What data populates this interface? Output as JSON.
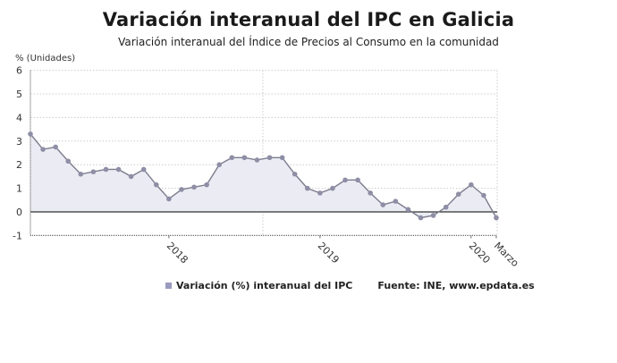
{
  "header": {
    "title": "Variación interanual del IPC en Galicia",
    "subtitle": "Variación interanual del Índice de Precios al Consumo en la comunidad"
  },
  "legend": {
    "series_label": "Variación (%) interanual del IPC",
    "source": "Fuente: INE, www.epdata.es"
  },
  "colors": {
    "line": "#7c7c8e",
    "marker": "#8e8ea6",
    "area": "#ebebf3",
    "legend_swatch": "#9a9abf",
    "zero_line": "#333333",
    "grid": "#cccccc"
  },
  "chart_data": {
    "type": "area",
    "title": "Variación interanual del IPC en Galicia",
    "subtitle": "Variación interanual del Índice de Precios al Consumo en la comunidad",
    "xlabel": "",
    "ylabel": "% (Unidades)",
    "ylim": [
      -1,
      6
    ],
    "yticks": [
      -1,
      0,
      1,
      2,
      3,
      4,
      5,
      6
    ],
    "xtick_labels": [
      "2018",
      "2019",
      "2020",
      "Marzo"
    ],
    "grid": true,
    "legend_position": "bottom",
    "x": [
      "2017-02",
      "2017-03",
      "2017-04",
      "2017-05",
      "2017-06",
      "2017-07",
      "2017-08",
      "2017-09",
      "2017-10",
      "2017-11",
      "2017-12",
      "2018-01",
      "2018-02",
      "2018-03",
      "2018-04",
      "2018-05",
      "2018-06",
      "2018-07",
      "2018-08",
      "2018-09",
      "2018-10",
      "2018-11",
      "2018-12",
      "2019-01",
      "2019-02",
      "2019-03",
      "2019-04",
      "2019-05",
      "2019-06",
      "2019-07",
      "2019-08",
      "2019-09",
      "2019-10",
      "2019-11",
      "2019-12",
      "2020-01",
      "2020-02",
      "2020-03"
    ],
    "series": [
      {
        "name": "Variación (%) interanual del IPC",
        "values": [
          3.3,
          2.65,
          2.75,
          2.15,
          1.6,
          1.7,
          1.8,
          1.8,
          1.5,
          1.8,
          1.15,
          0.55,
          0.95,
          1.05,
          1.15,
          2.0,
          2.3,
          2.3,
          2.2,
          2.3,
          2.3,
          1.6,
          1.0,
          0.8,
          1.0,
          1.35,
          1.35,
          0.8,
          0.3,
          0.45,
          0.1,
          -0.25,
          -0.15,
          0.2,
          0.75,
          1.15,
          0.7,
          -0.25
        ]
      }
    ],
    "source": "Fuente: INE, www.epdata.es"
  }
}
